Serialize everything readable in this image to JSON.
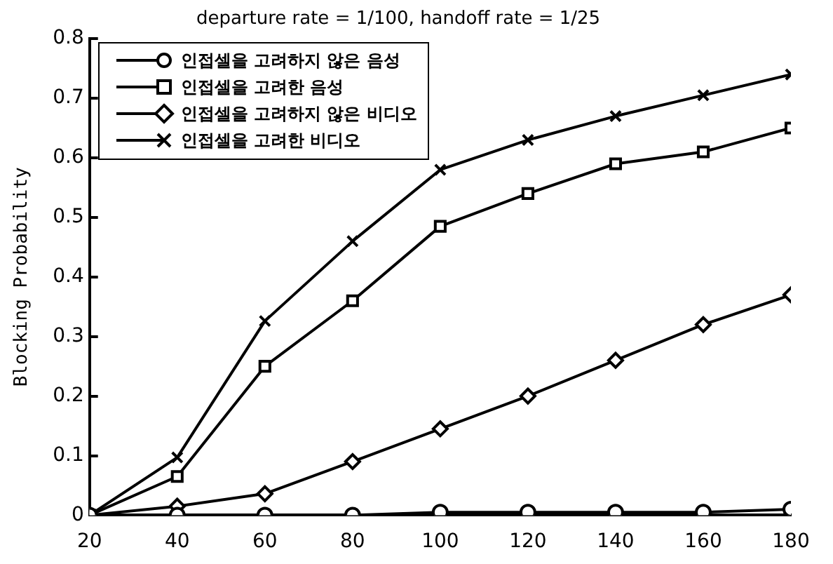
{
  "chart_data": {
    "type": "line",
    "title": "departure rate = 1/100, handoff rate = 1/25",
    "ylabel": "Blocking Probability",
    "x": [
      20,
      40,
      60,
      80,
      100,
      120,
      140,
      160,
      180
    ],
    "xlim": [
      20,
      180
    ],
    "xticks": [
      20,
      40,
      60,
      80,
      100,
      120,
      140,
      160,
      180
    ],
    "ylim": [
      0,
      0.8
    ],
    "yticks": [
      0,
      0.1,
      0.2,
      0.3,
      0.4,
      0.5,
      0.6,
      0.7,
      0.8
    ],
    "grid": false,
    "legend": "top left",
    "line_style": "solid",
    "series": [
      {
        "name": "인접셀을 고려하지 않은 음성",
        "color": "#000000",
        "marker": "circle",
        "values": [
          0,
          0,
          0,
          0,
          0.005,
          0.005,
          0.005,
          0.005,
          0.01
        ]
      },
      {
        "name": "인접셀을 고려한 음성",
        "color": "#000000",
        "marker": "square",
        "values": [
          0,
          0.065,
          0.25,
          0.36,
          0.485,
          0.54,
          0.59,
          0.61,
          0.65
        ]
      },
      {
        "name": "인접셀을 고려하지 않은 비디오",
        "color": "#000000",
        "marker": "diamond",
        "values": [
          0,
          0.015,
          0.036,
          0.09,
          0.145,
          0.2,
          0.26,
          0.32,
          0.37
        ]
      },
      {
        "name": "인접셀을 고려한 비디오",
        "color": "#000000",
        "marker": "cross",
        "values": [
          0,
          0.097,
          0.326,
          0.46,
          0.58,
          0.63,
          0.67,
          0.705,
          0.74
        ]
      }
    ]
  }
}
